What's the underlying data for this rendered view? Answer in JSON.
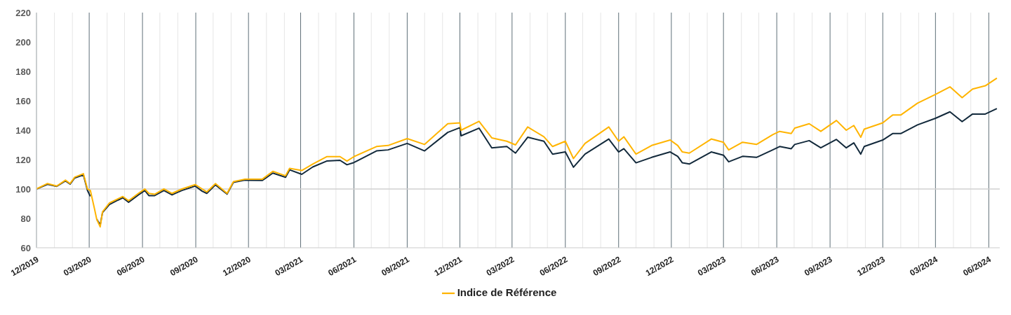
{
  "chart_data": {
    "type": "line",
    "xlim": [
      "2019-12-01",
      "2024-06-20"
    ],
    "ylim": [
      60,
      220
    ],
    "yticks": [
      60,
      80,
      100,
      120,
      140,
      160,
      180,
      200,
      220
    ],
    "xticks": [
      {
        "value": "2019-12-01",
        "label": "12/2019"
      },
      {
        "value": "2020-01-01",
        "label": null
      },
      {
        "value": "2020-02-01",
        "label": null
      },
      {
        "value": "2020-03-01",
        "label": "03/2020"
      },
      {
        "value": "2020-04-01",
        "label": null
      },
      {
        "value": "2020-05-01",
        "label": null
      },
      {
        "value": "2020-06-01",
        "label": "06/2020"
      },
      {
        "value": "2020-07-01",
        "label": null
      },
      {
        "value": "2020-08-01",
        "label": null
      },
      {
        "value": "2020-09-01",
        "label": "09/2020"
      },
      {
        "value": "2020-10-01",
        "label": null
      },
      {
        "value": "2020-11-01",
        "label": null
      },
      {
        "value": "2020-12-01",
        "label": "12/2020"
      },
      {
        "value": "2021-01-01",
        "label": null
      },
      {
        "value": "2021-02-01",
        "label": null
      },
      {
        "value": "2021-03-01",
        "label": "03/2021"
      },
      {
        "value": "2021-04-01",
        "label": null
      },
      {
        "value": "2021-05-01",
        "label": null
      },
      {
        "value": "2021-06-01",
        "label": "06/2021"
      },
      {
        "value": "2021-07-01",
        "label": null
      },
      {
        "value": "2021-08-01",
        "label": null
      },
      {
        "value": "2021-09-01",
        "label": "09/2021"
      },
      {
        "value": "2021-10-01",
        "label": null
      },
      {
        "value": "2021-11-01",
        "label": null
      },
      {
        "value": "2021-12-01",
        "label": "12/2021"
      },
      {
        "value": "2022-01-01",
        "label": null
      },
      {
        "value": "2022-02-01",
        "label": null
      },
      {
        "value": "2022-03-01",
        "label": "03/2022"
      },
      {
        "value": "2022-04-01",
        "label": null
      },
      {
        "value": "2022-05-01",
        "label": null
      },
      {
        "value": "2022-06-01",
        "label": "06/2022"
      },
      {
        "value": "2022-07-01",
        "label": null
      },
      {
        "value": "2022-08-01",
        "label": null
      },
      {
        "value": "2022-09-01",
        "label": "09/2022"
      },
      {
        "value": "2022-10-01",
        "label": null
      },
      {
        "value": "2022-11-01",
        "label": null
      },
      {
        "value": "2022-12-01",
        "label": "12/2022"
      },
      {
        "value": "2023-01-01",
        "label": null
      },
      {
        "value": "2023-02-01",
        "label": null
      },
      {
        "value": "2023-03-01",
        "label": "03/2023"
      },
      {
        "value": "2023-04-01",
        "label": null
      },
      {
        "value": "2023-05-01",
        "label": null
      },
      {
        "value": "2023-06-01",
        "label": "06/2023"
      },
      {
        "value": "2023-07-01",
        "label": null
      },
      {
        "value": "2023-08-01",
        "label": null
      },
      {
        "value": "2023-09-01",
        "label": "09/2023"
      },
      {
        "value": "2023-10-01",
        "label": null
      },
      {
        "value": "2023-11-01",
        "label": null
      },
      {
        "value": "2023-12-01",
        "label": "12/2023"
      },
      {
        "value": "2024-01-01",
        "label": null
      },
      {
        "value": "2024-02-01",
        "label": null
      },
      {
        "value": "2024-03-01",
        "label": "03/2024"
      },
      {
        "value": "2024-04-01",
        "label": null
      },
      {
        "value": "2024-05-01",
        "label": null
      },
      {
        "value": "2024-06-01",
        "label": "06/2024"
      }
    ],
    "x": [
      "2019-12-01",
      "2019-12-20",
      "2020-01-05",
      "2020-01-20",
      "2020-01-28",
      "2020-02-05",
      "2020-02-20",
      "2020-02-27",
      "2020-03-03",
      "2020-03-10",
      "2020-03-14",
      "2020-03-20",
      "2020-03-24",
      "2020-04-05",
      "2020-04-20",
      "2020-04-28",
      "2020-05-08",
      "2020-05-25",
      "2020-06-05",
      "2020-06-12",
      "2020-06-22",
      "2020-07-08",
      "2020-07-22",
      "2020-08-08",
      "2020-08-31",
      "2020-09-12",
      "2020-09-20",
      "2020-10-05",
      "2020-10-25",
      "2020-11-05",
      "2020-11-25",
      "2020-12-25",
      "2021-01-12",
      "2021-02-03",
      "2021-02-10",
      "2021-03-03",
      "2021-03-22",
      "2021-04-15",
      "2021-05-08",
      "2021-05-20",
      "2021-06-01",
      "2021-07-10",
      "2021-07-30",
      "2021-09-01",
      "2021-10-01",
      "2021-11-10",
      "2021-12-01",
      "2021-12-03",
      "2022-01-03",
      "2022-01-25",
      "2022-02-20",
      "2022-03-07",
      "2022-03-28",
      "2022-04-25",
      "2022-05-10",
      "2022-06-01",
      "2022-06-15",
      "2022-07-05",
      "2022-08-15",
      "2022-09-01",
      "2022-09-10",
      "2022-10-01",
      "2022-10-28",
      "2022-11-29",
      "2022-12-12",
      "2022-12-20",
      "2023-01-01",
      "2023-02-08",
      "2023-03-01",
      "2023-03-10",
      "2023-04-03",
      "2023-04-27",
      "2023-05-25",
      "2023-06-06",
      "2023-06-26",
      "2023-07-02",
      "2023-07-27",
      "2023-08-16",
      "2023-09-12",
      "2023-09-29",
      "2023-10-12",
      "2023-10-24",
      "2023-10-30",
      "2023-12-01",
      "2023-12-18",
      "2024-01-01",
      "2024-01-30",
      "2024-03-01",
      "2024-03-26",
      "2024-04-16",
      "2024-05-04",
      "2024-05-26",
      "2024-06-15"
    ],
    "series": [
      {
        "color": "#12293b",
        "values": [
          100,
          103.2,
          101.8,
          105.5,
          103.3,
          107.5,
          109.6,
          99,
          95,
          null,
          79.5,
          75.5,
          84,
          89.5,
          92.5,
          94,
          91,
          96,
          99,
          95.5,
          95.5,
          99,
          96,
          99,
          102,
          98.5,
          97,
          102.8,
          96.5,
          104.5,
          106,
          105.8,
          110.8,
          108,
          113,
          110,
          115,
          119,
          119.5,
          116.5,
          118,
          125.9,
          126.6,
          131,
          125.9,
          138.5,
          141.7,
          136.2,
          141.4,
          128,
          128.9,
          124.4,
          135.2,
          132.5,
          123.7,
          125.2,
          114.8,
          123.7,
          134,
          125.2,
          127.4,
          117.8,
          121.5,
          125.2,
          122.2,
          117.8,
          117,
          125.2,
          123,
          118.5,
          122.2,
          121.5,
          126.6,
          128.9,
          127.4,
          130.3,
          132.9,
          128,
          133.7,
          128,
          131.4,
          123.7,
          128.9,
          133.3,
          137.7,
          137.7,
          143.6,
          148.1,
          152.5,
          145.8,
          151,
          151,
          154.7
        ]
      },
      {
        "name": "Indice de Référence",
        "color": "#ffb400",
        "values": [
          100,
          103.7,
          102,
          106,
          103.7,
          108,
          110.4,
          100,
          99,
          86.8,
          79.4,
          74.2,
          84.5,
          90.5,
          93.4,
          94.9,
          92,
          97,
          100,
          97,
          96.4,
          100,
          97,
          100,
          103,
          100,
          98,
          103.7,
          97,
          105,
          106.7,
          106.7,
          112,
          109,
          114,
          112.6,
          117,
          122,
          122,
          119,
          122,
          128.9,
          129.6,
          134.3,
          130.3,
          144.4,
          145,
          140,
          146,
          134.8,
          132.5,
          130,
          142.2,
          135.5,
          128.9,
          132.5,
          120.7,
          131,
          142.2,
          132.5,
          135.5,
          123.7,
          129.6,
          133.3,
          129.6,
          125.2,
          124.4,
          134,
          131.8,
          126.6,
          131.8,
          130.3,
          137,
          139.2,
          137.7,
          141.4,
          144.4,
          139.2,
          146.6,
          140,
          143.2,
          135.2,
          140.7,
          145,
          150.3,
          150.3,
          158.4,
          164.3,
          169.5,
          162.1,
          168,
          170.2,
          175.4
        ]
      }
    ],
    "ref_lines": [
      {
        "axis": "y",
        "value": 100,
        "color": "#d0d0d0"
      }
    ],
    "grid": "x",
    "legend": "bottom",
    "line_style": "solid",
    "marker": "none"
  }
}
